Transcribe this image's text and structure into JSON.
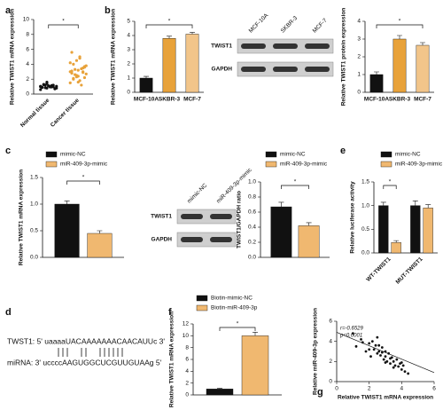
{
  "panels": [
    "a",
    "b",
    "c",
    "d",
    "e",
    "f",
    "g"
  ],
  "blots": [
    {
      "lanes": [
        "MCF-10A",
        "SKBR-3",
        "MCF-7"
      ],
      "rows": [
        "TWIST1",
        "GAPDH"
      ]
    },
    {
      "lanes": [
        "mimic-NC",
        "miR-409-3p-mimic"
      ],
      "rows": [
        "TWIST1",
        "GAPDH"
      ]
    }
  ],
  "sequence": {
    "target": "TWST1: 5' uaaaaUACAAAAAAACAACAUUc 3'",
    "mirna": "miRNA: 3' uccccAAGUGGCUCGUUGUAAg 5'"
  },
  "chart_data": [
    {
      "type": "strip",
      "y_label": "Relative TWIST1 mRNA expression",
      "categories": [
        "Normal tissue",
        "Cancer tissue"
      ],
      "colors": [
        "#111111",
        "#e8a23a"
      ],
      "values": [
        [
          1.0,
          0.8,
          1.2,
          0.9,
          1.1,
          0.7,
          1.3,
          0.95,
          1.05,
          0.85,
          1.15,
          0.6,
          1.4,
          1.0,
          0.9,
          1.1,
          0.75,
          1.25,
          1.0,
          0.8,
          1.2,
          0.95,
          1.05,
          1.6
        ],
        [
          3.0,
          2.5,
          3.5,
          2.8,
          3.2,
          2.2,
          4.0,
          1.8,
          3.8,
          2.6,
          3.4,
          1.5,
          4.5,
          2.9,
          3.1,
          2.4,
          3.6,
          2.0,
          5.0,
          2.7,
          3.3,
          1.2,
          4.2,
          2.3,
          3.0,
          5.6,
          1.6,
          3.7,
          2.1,
          4.8
        ]
      ],
      "ylim": [
        0,
        10
      ],
      "yticks": [
        0,
        2,
        4,
        6,
        8,
        10
      ],
      "significance": "*"
    },
    {
      "type": "bar",
      "y_label": "Relative TWIST1 mRNA expression",
      "categories": [
        "MCF-10A",
        "SKBR-3",
        "MCF-7"
      ],
      "values": [
        1.0,
        3.8,
        4.1
      ],
      "errors": [
        0.12,
        0.15,
        0.12
      ],
      "colors": [
        "#111111",
        "#e8a23a",
        "#f2c58a"
      ],
      "ylim": [
        0,
        5
      ],
      "yticks": [
        0,
        1,
        2,
        3,
        4,
        5
      ],
      "significance": "*"
    },
    {
      "type": "bar",
      "y_label": "Relative TWIST1 protein expression",
      "categories": [
        "MCF-10A",
        "SKBR-3",
        "MCF-7"
      ],
      "values": [
        1.0,
        3.0,
        2.65
      ],
      "errors": [
        0.15,
        0.2,
        0.15
      ],
      "colors": [
        "#111111",
        "#e8a23a",
        "#f2c58a"
      ],
      "ylim": [
        0,
        4
      ],
      "yticks": [
        0,
        1,
        2,
        3,
        4
      ],
      "significance": "*"
    },
    {
      "type": "bar",
      "y_label": "Relative TWIST1 mRNA expression",
      "categories": [
        null
      ],
      "series": [
        {
          "name": "mimic-NC",
          "color": "#111111",
          "values": [
            1.0
          ],
          "errors": [
            0.06
          ]
        },
        {
          "name": "miR-409-3p-mimic",
          "color": "#f0b870",
          "values": [
            0.45
          ],
          "errors": [
            0.05
          ]
        }
      ],
      "ylim": [
        0,
        1.5
      ],
      "yticks": [
        {
          "value": 0,
          "label": "0.0"
        },
        0.5,
        {
          "value": 1,
          "label": "1.0"
        },
        1.5
      ],
      "significance": "*"
    },
    {
      "type": "bar",
      "y_label": "TWIST1/GAPDH ratio",
      "categories": [
        null
      ],
      "series": [
        {
          "name": "mimic-NC",
          "color": "#111111",
          "values": [
            0.67
          ],
          "errors": [
            0.06
          ]
        },
        {
          "name": "miR-409-3p-mimic",
          "color": "#f0b870",
          "values": [
            0.42
          ],
          "errors": [
            0.04
          ]
        }
      ],
      "ylim": [
        0,
        1
      ],
      "yticks": [
        {
          "value": 0,
          "label": "0.0"
        },
        0.2,
        0.4,
        0.6,
        0.8,
        {
          "value": 1,
          "label": "1.0"
        }
      ],
      "significance": "*",
      "legend": false
    },
    {
      "type": "bar",
      "y_label": "Relative luciferase activity",
      "categories": [
        "WT-TWIST1",
        "MUT-TWIST1"
      ],
      "series": [
        {
          "name": "mimic-NC",
          "color": "#111111",
          "values": [
            1.0,
            1.0
          ],
          "errors": [
            0.07,
            0.1
          ]
        },
        {
          "name": "miR-409-3p-mimic",
          "color": "#f0b870",
          "values": [
            0.22,
            0.95
          ],
          "errors": [
            0.04,
            0.07
          ]
        }
      ],
      "ylim": [
        0,
        1.5
      ],
      "yticks": [
        {
          "value": 0,
          "label": "0.0"
        },
        0.5,
        {
          "value": 1,
          "label": "1.0"
        },
        1.5
      ],
      "significance": "*"
    },
    {
      "type": "bar",
      "y_label": "Relative TWIST1 mRNA expression",
      "categories": [
        null
      ],
      "series": [
        {
          "name": "Biotin-mimic-NC",
          "color": "#111111",
          "values": [
            1.0
          ],
          "errors": [
            0.12
          ]
        },
        {
          "name": "Biotin-miR-409-3p",
          "color": "#f0b870",
          "values": [
            10.0
          ],
          "errors": [
            0.6
          ]
        }
      ],
      "ylim": [
        0,
        12
      ],
      "yticks": [
        0,
        2,
        4,
        6,
        8,
        10,
        12
      ],
      "significance": "*"
    },
    {
      "type": "scatter",
      "x_label": "Relative TWIST1 mRNA expression",
      "y_label": "Relative miR-409-3p expression",
      "color": "#111111",
      "x": [
        1.0,
        1.2,
        1.5,
        1.8,
        2.0,
        2.1,
        2.2,
        2.3,
        2.4,
        2.5,
        2.5,
        2.6,
        2.7,
        2.8,
        2.9,
        3.0,
        3.0,
        3.1,
        3.2,
        3.3,
        3.4,
        3.5,
        3.6,
        3.7,
        3.8,
        3.9,
        4.0,
        4.1,
        4.2,
        4.4,
        2.0,
        2.6,
        3.0,
        3.5,
        1.6,
        2.8,
        3.3,
        4.0
      ],
      "values": [
        4.8,
        3.5,
        4.2,
        3.0,
        3.8,
        2.5,
        4.0,
        3.2,
        3.6,
        2.8,
        4.4,
        3.0,
        2.6,
        3.4,
        2.2,
        3.0,
        2.5,
        2.0,
        2.8,
        1.8,
        2.4,
        2.0,
        1.6,
        2.2,
        1.5,
        1.8,
        1.2,
        1.6,
        1.0,
        0.8,
        3.2,
        3.6,
        1.9,
        1.4,
        3.9,
        2.9,
        2.3,
        1.9
      ],
      "trendline": {
        "x": [
          0,
          6
        ],
        "y": [
          4.9,
          0.9
        ]
      },
      "annotations": [
        "r=-0.6529",
        "p<0.0001"
      ],
      "xlim": [
        0,
        6
      ],
      "xticks": [
        0,
        2,
        4,
        6
      ],
      "ylim": [
        0,
        6
      ],
      "yticks": [
        0,
        2,
        4,
        6
      ]
    }
  ]
}
